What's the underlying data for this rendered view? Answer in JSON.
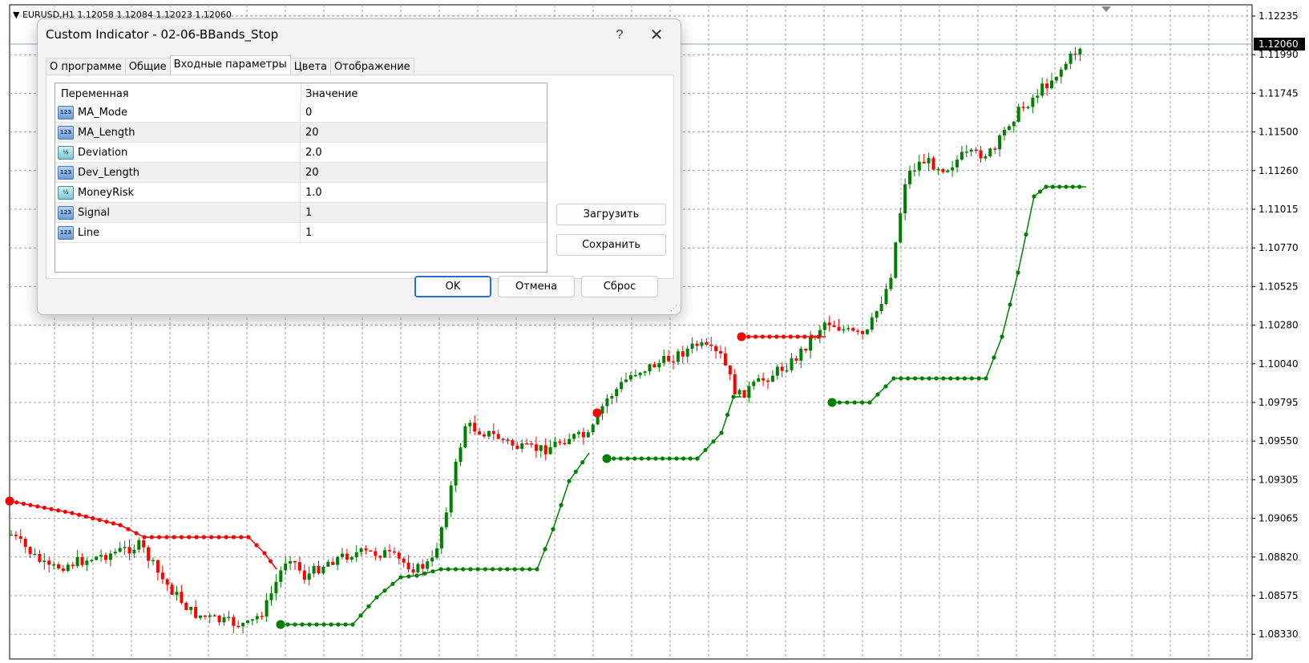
{
  "chart": {
    "symbol_line": "EURUSD,H1  1.12058 1.12084 1.12023 1.12060",
    "current_price": "1.12060",
    "price_labels": [
      "1.12235",
      "1.11990",
      "1.11745",
      "1.11500",
      "1.11260",
      "1.11015",
      "1.10770",
      "1.10525",
      "1.10280",
      "1.10040",
      "1.09795",
      "1.09550",
      "1.09305",
      "1.09065",
      "1.08820",
      "1.08575",
      "1.08330"
    ],
    "colors": {
      "bull": "#008000",
      "bear": "#ff0000",
      "grid": "#a0a0a0",
      "price_line": "#8aa8c8"
    }
  },
  "dialog": {
    "title": "Custom Indicator - 02-06-BBands_Stop",
    "help_label": "?",
    "close_label": "✕",
    "tabs": [
      {
        "label": "О программе"
      },
      {
        "label": "Общие"
      },
      {
        "label": "Входные параметры"
      },
      {
        "label": "Цвета"
      },
      {
        "label": "Отображение"
      }
    ],
    "active_tab": "Входные параметры",
    "table": {
      "col_variable": "Переменная",
      "col_value": "Значение",
      "rows": [
        {
          "type_icon": "int-type-icon",
          "type_glyph": "123",
          "name": "MA_Mode",
          "value": "0"
        },
        {
          "type_icon": "int-type-icon",
          "type_glyph": "123",
          "name": "MA_Length",
          "value": "20"
        },
        {
          "type_icon": "double-type-icon",
          "type_glyph": "½",
          "name": "Deviation",
          "value": "2.0"
        },
        {
          "type_icon": "int-type-icon",
          "type_glyph": "123",
          "name": "Dev_Length",
          "value": "20"
        },
        {
          "type_icon": "double-type-icon",
          "type_glyph": "½",
          "name": "MoneyRisk",
          "value": "1.0"
        },
        {
          "type_icon": "int-type-icon",
          "type_glyph": "123",
          "name": "Signal",
          "value": "1"
        },
        {
          "type_icon": "int-type-icon",
          "type_glyph": "123",
          "name": "Line",
          "value": "1"
        }
      ]
    },
    "load_label": "Загрузить",
    "save_label": "Сохранить",
    "ok_label": "OK",
    "cancel_label": "Отмена",
    "reset_label": "Сброс"
  }
}
